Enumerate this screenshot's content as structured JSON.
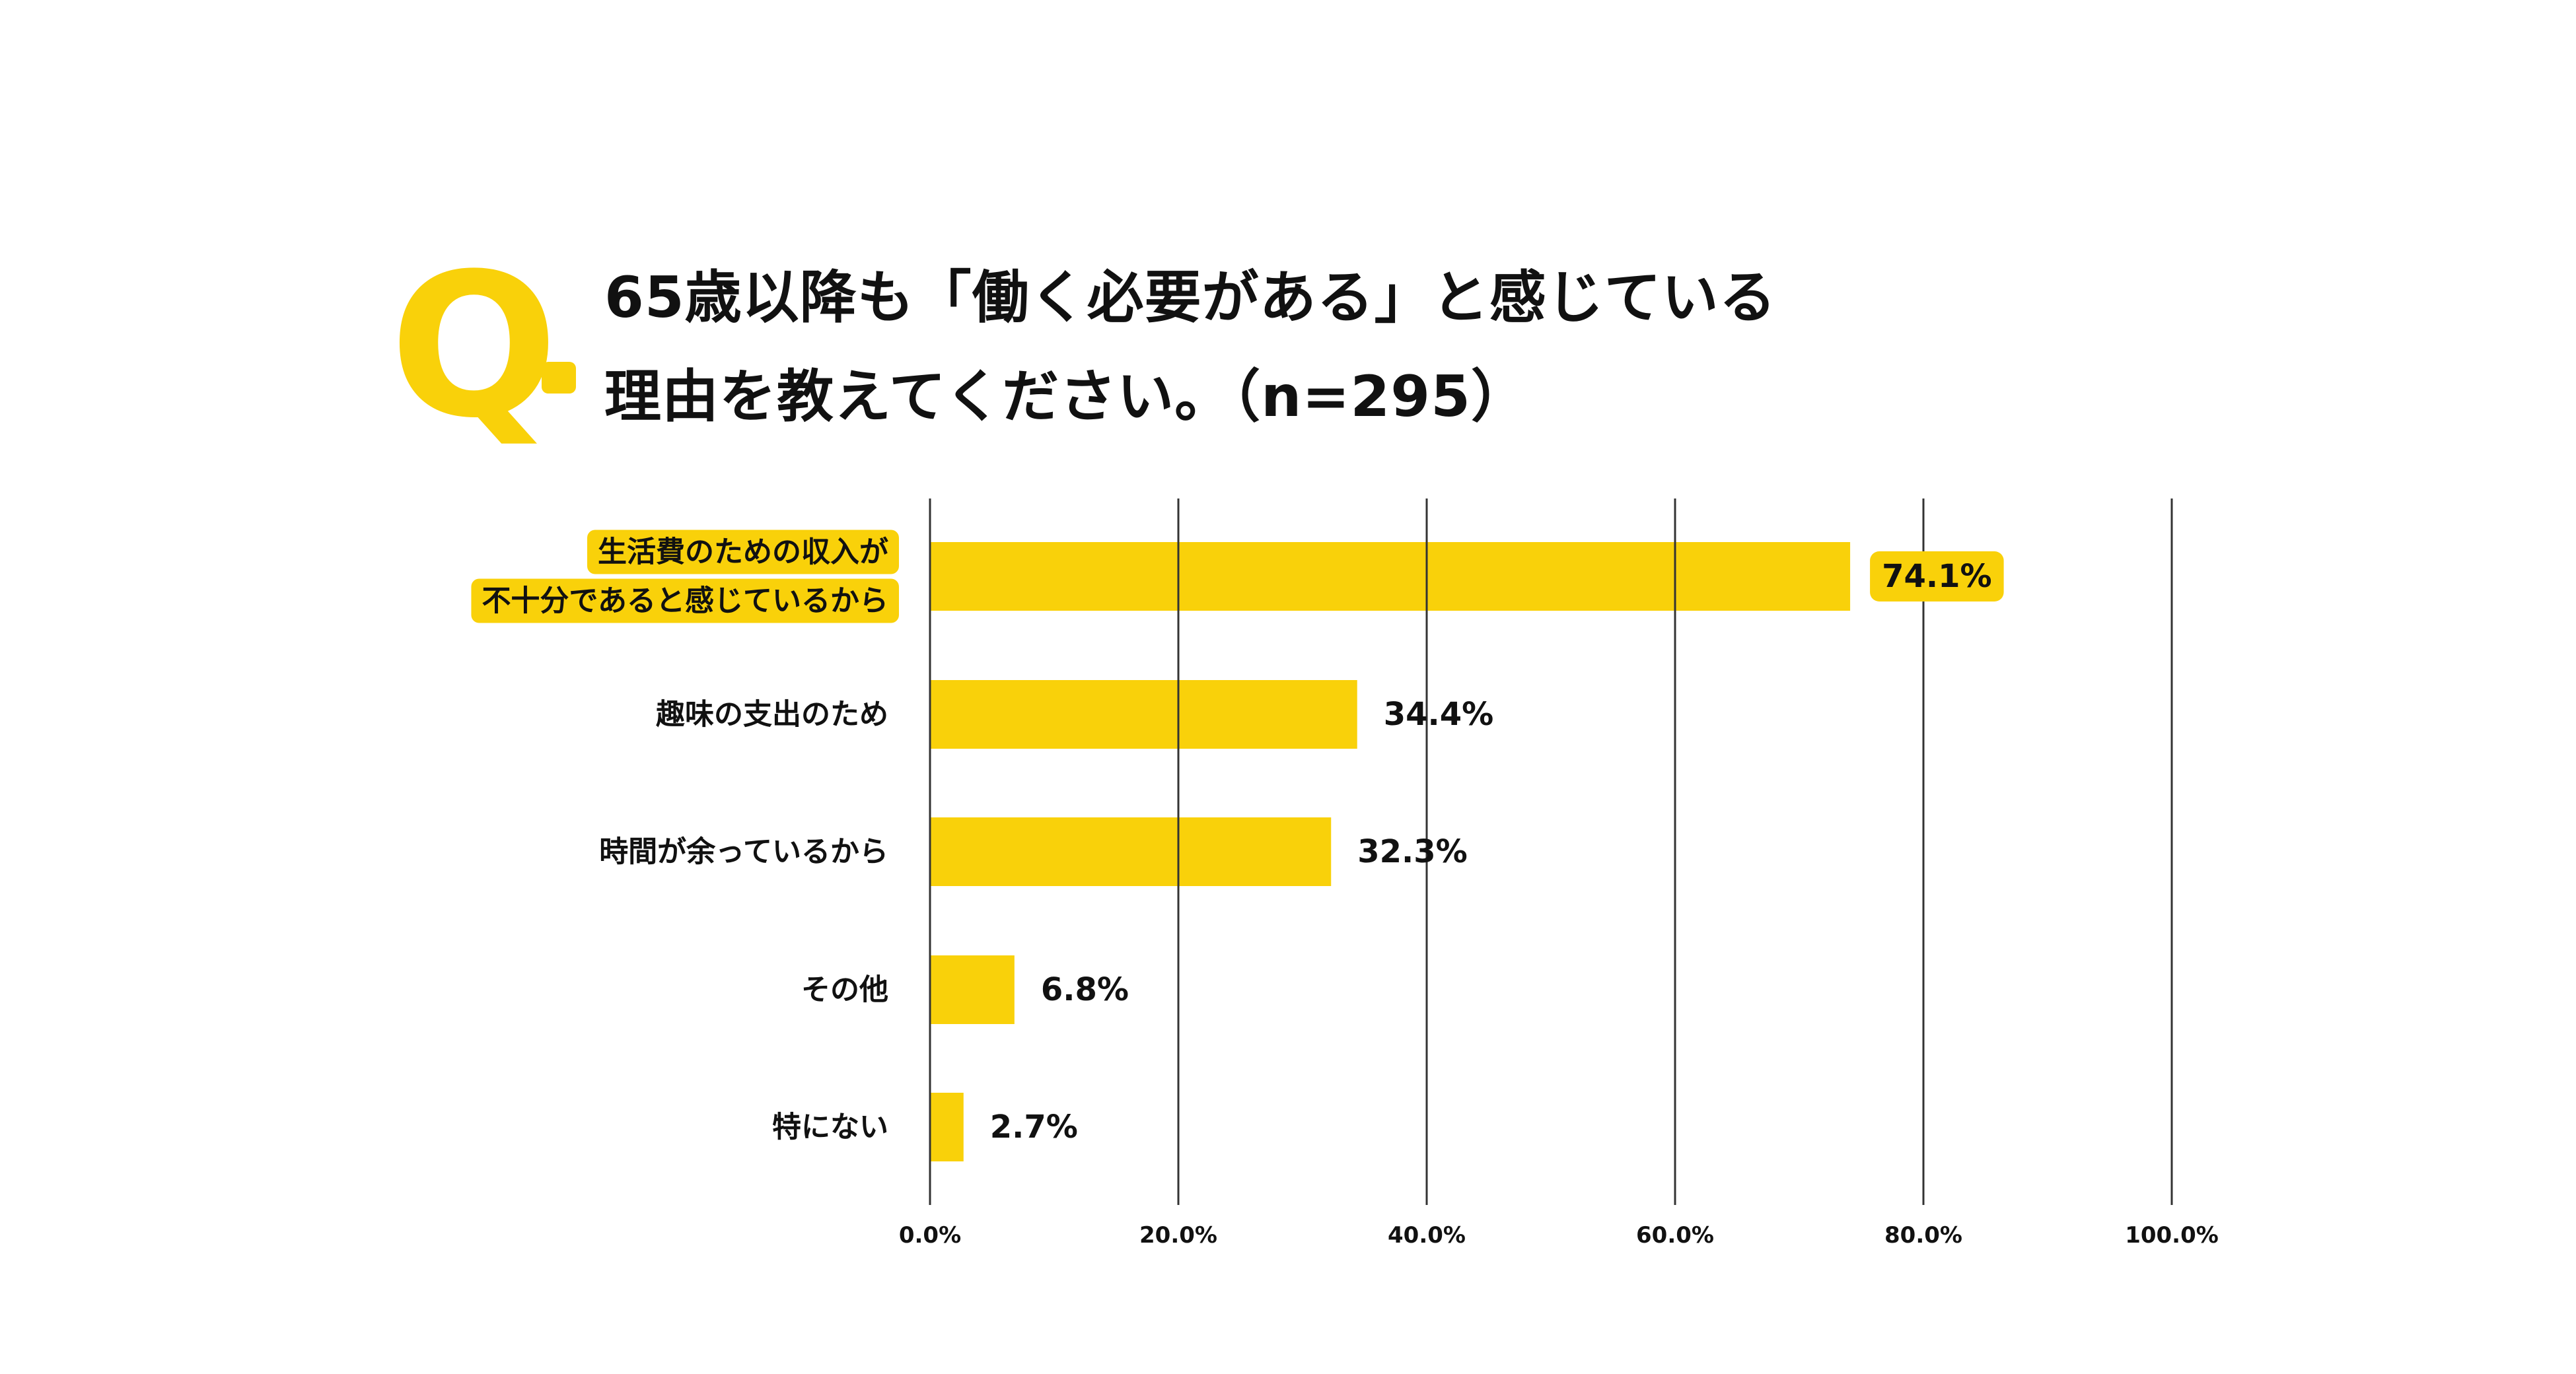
{
  "header": {
    "q_mark": "Q",
    "title_line_1": "65歳以降も「働く必要がある」と感じている",
    "title_line_2": "理由を教えてください。（n=295）"
  },
  "colors": {
    "accent": "#F9D10A",
    "gridline": "#333333",
    "text": "#111111"
  },
  "chart_data": {
    "type": "bar",
    "orientation": "horizontal",
    "categories": [
      [
        "生活費のための収入が",
        "不十分であると感じているから"
      ],
      [
        "趣味の支出のため"
      ],
      [
        "時間が余っているから"
      ],
      [
        "その他"
      ],
      [
        "特にない"
      ]
    ],
    "values": [
      74.1,
      34.4,
      32.3,
      6.8,
      2.7
    ],
    "value_labels": [
      "74.1%",
      "34.4%",
      "32.3%",
      "6.8%",
      "2.7%"
    ],
    "highlight_index": 0,
    "xlim": [
      0,
      100
    ],
    "xticks": [
      0,
      20,
      40,
      60,
      80,
      100
    ],
    "xtick_labels": [
      "0.0%",
      "20.0%",
      "40.0%",
      "60.0%",
      "80.0%",
      "100.0%"
    ],
    "grid": true
  }
}
